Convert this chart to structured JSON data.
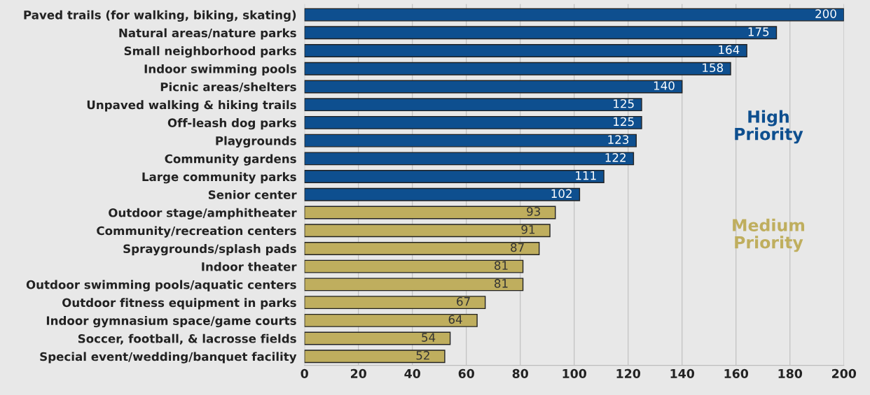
{
  "chart_data": {
    "type": "bar",
    "orientation": "horizontal",
    "categories": [
      "Paved trails (for walking, biking, skating)",
      "Natural areas/nature parks",
      "Small neighborhood parks",
      "Indoor swimming pools",
      "Picnic areas/shelters",
      "Unpaved walking & hiking trails",
      "Off-leash dog parks",
      "Playgrounds",
      "Community gardens",
      "Large community parks",
      "Senior center",
      "Outdoor stage/amphitheater",
      "Community/recreation centers",
      "Spraygrounds/splash pads",
      "Indoor theater",
      "Outdoor swimming pools/aquatic centers",
      "Outdoor fitness equipment in parks",
      "Indoor gymnasium space/game courts",
      "Soccer, football, & lacrosse fields",
      "Special event/wedding/banquet facility"
    ],
    "values": [
      200,
      175,
      164,
      158,
      140,
      125,
      125,
      123,
      122,
      111,
      102,
      93,
      91,
      87,
      81,
      81,
      67,
      64,
      54,
      52
    ],
    "colors": [
      "#0e4f8f",
      "#0e4f8f",
      "#0e4f8f",
      "#0e4f8f",
      "#0e4f8f",
      "#0e4f8f",
      "#0e4f8f",
      "#0e4f8f",
      "#0e4f8f",
      "#0e4f8f",
      "#0e4f8f",
      "#bfae5e",
      "#bfae5e",
      "#bfae5e",
      "#bfae5e",
      "#bfae5e",
      "#bfae5e",
      "#bfae5e",
      "#bfae5e",
      "#bfae5e"
    ],
    "data_labels": true,
    "xlim": [
      0,
      200
    ],
    "xticks": [
      0,
      20,
      40,
      60,
      80,
      100,
      120,
      140,
      160,
      180,
      200
    ],
    "grid": "x",
    "annotations": [
      "High\nPriority",
      "Medium\nPriority"
    ]
  }
}
